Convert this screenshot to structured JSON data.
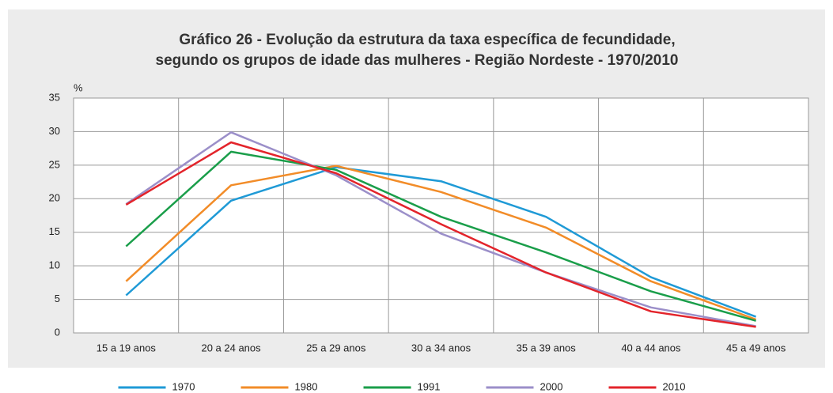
{
  "chart_data": {
    "type": "line",
    "title": [
      "Gráfico 26 - Evolução da estrutura da taxa específica de fecundidade,",
      "segundo os grupos de idade das mulheres - Região Nordeste - 1970/2010"
    ],
    "ylabel": "%",
    "categories": [
      "15 a 19 anos",
      "20 a 24 anos",
      "25 a 29 anos",
      "30 a 34 anos",
      "35 a 39 anos",
      "40 a 44 anos",
      "45 a 49 anos"
    ],
    "series": [
      {
        "name": "1970",
        "color": "#1f9ad6",
        "values": [
          5.6,
          19.7,
          24.7,
          22.6,
          17.3,
          8.3,
          2.4
        ]
      },
      {
        "name": "1980",
        "color": "#f28c28",
        "values": [
          7.7,
          22.0,
          24.9,
          21.0,
          15.7,
          7.7,
          2.0
        ]
      },
      {
        "name": "1991",
        "color": "#1a9e4a",
        "values": [
          12.9,
          27.0,
          24.3,
          17.3,
          12.0,
          6.2,
          1.8
        ]
      },
      {
        "name": "2000",
        "color": "#9b8fc9",
        "values": [
          19.2,
          29.9,
          23.5,
          14.8,
          9.0,
          3.8,
          1.0
        ]
      },
      {
        "name": "2010",
        "color": "#e3242b",
        "values": [
          19.1,
          28.4,
          23.8,
          16.2,
          9.0,
          3.2,
          0.9
        ]
      }
    ],
    "ylim": [
      0,
      35
    ],
    "yticks": [
      0,
      5,
      10,
      15,
      20,
      25,
      30,
      35
    ],
    "grid": true,
    "legend": "bottom"
  }
}
